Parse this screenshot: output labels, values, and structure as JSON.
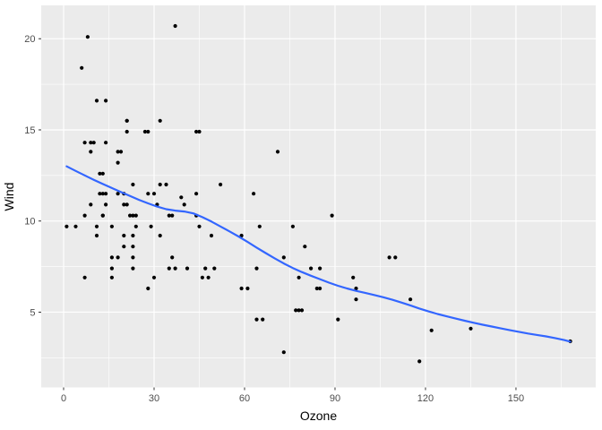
{
  "chart_data": {
    "type": "scatter",
    "title": "",
    "xlabel": "Ozone",
    "ylabel": "Wind",
    "legend": "none",
    "grid": "white major and minor gridlines on gray panel",
    "xlim": [
      -7.43,
      176.45
    ],
    "ylim": [
      0.87,
      21.83
    ],
    "x_ticks": [
      0,
      30,
      60,
      90,
      120,
      150
    ],
    "y_ticks": [
      5,
      10,
      15,
      20
    ],
    "x_minor_ticks": [
      15,
      45,
      75,
      105,
      135,
      165
    ],
    "y_minor_ticks": [
      2.5,
      7.5,
      12.5,
      17.5
    ],
    "colors": {
      "panel_background": "#EBEBEB",
      "gridline": "#FFFFFF",
      "point": "#000000",
      "smooth_line": "#3366FF",
      "tick_text": "#4d4d4d",
      "axis_title": "#000000",
      "tick_mark": "#333333",
      "page_background": "#FFFFFF"
    },
    "points": [
      [
        41,
        7.4
      ],
      [
        36,
        8.0
      ],
      [
        12,
        12.6
      ],
      [
        18,
        11.5
      ],
      [
        28,
        14.9
      ],
      [
        23,
        8.6
      ],
      [
        19,
        13.8
      ],
      [
        8,
        20.1
      ],
      [
        7,
        6.9
      ],
      [
        16,
        9.7
      ],
      [
        11,
        9.2
      ],
      [
        14,
        10.9
      ],
      [
        18,
        13.2
      ],
      [
        14,
        11.5
      ],
      [
        34,
        12.0
      ],
      [
        6,
        18.4
      ],
      [
        30,
        11.5
      ],
      [
        11,
        9.7
      ],
      [
        1,
        9.7
      ],
      [
        11,
        16.6
      ],
      [
        4,
        9.7
      ],
      [
        32,
        12.0
      ],
      [
        23,
        12.0
      ],
      [
        45,
        14.9
      ],
      [
        115,
        5.7
      ],
      [
        37,
        7.4
      ],
      [
        29,
        9.7
      ],
      [
        71,
        13.8
      ],
      [
        39,
        11.3
      ],
      [
        23,
        8.0
      ],
      [
        21,
        14.9
      ],
      [
        37,
        20.7
      ],
      [
        20,
        9.2
      ],
      [
        12,
        11.5
      ],
      [
        13,
        10.3
      ],
      [
        135,
        4.1
      ],
      [
        49,
        9.2
      ],
      [
        32,
        9.2
      ],
      [
        64,
        4.6
      ],
      [
        40,
        10.9
      ],
      [
        77,
        5.1
      ],
      [
        97,
        6.3
      ],
      [
        97,
        5.7
      ],
      [
        85,
        7.4
      ],
      [
        10,
        14.3
      ],
      [
        27,
        14.9
      ],
      [
        7,
        14.3
      ],
      [
        48,
        6.9
      ],
      [
        35,
        10.3
      ],
      [
        61,
        6.3
      ],
      [
        79,
        5.1
      ],
      [
        63,
        11.5
      ],
      [
        16,
        6.9
      ],
      [
        80,
        8.6
      ],
      [
        108,
        8.0
      ],
      [
        20,
        8.6
      ],
      [
        52,
        12.0
      ],
      [
        82,
        7.4
      ],
      [
        50,
        7.4
      ],
      [
        64,
        7.4
      ],
      [
        59,
        9.2
      ],
      [
        9,
        13.8
      ],
      [
        16,
        7.4
      ],
      [
        78,
        6.9
      ],
      [
        35,
        7.4
      ],
      [
        66,
        4.6
      ],
      [
        122,
        4.0
      ],
      [
        89,
        10.3
      ],
      [
        110,
        8.0
      ],
      [
        44,
        11.5
      ],
      [
        28,
        11.5
      ],
      [
        65,
        9.7
      ],
      [
        22,
        10.3
      ],
      [
        59,
        6.3
      ],
      [
        23,
        7.4
      ],
      [
        31,
        10.9
      ],
      [
        44,
        10.3
      ],
      [
        21,
        15.5
      ],
      [
        9,
        14.3
      ],
      [
        45,
        9.7
      ],
      [
        168,
        3.4
      ],
      [
        73,
        8.0
      ],
      [
        76,
        9.7
      ],
      [
        118,
        2.3
      ],
      [
        84,
        6.3
      ],
      [
        85,
        6.3
      ],
      [
        96,
        6.9
      ],
      [
        78,
        5.1
      ],
      [
        73,
        2.8
      ],
      [
        91,
        4.6
      ],
      [
        47,
        7.4
      ],
      [
        32,
        15.5
      ],
      [
        20,
        10.9
      ],
      [
        23,
        10.3
      ],
      [
        21,
        10.9
      ],
      [
        24,
        9.7
      ],
      [
        44,
        14.9
      ],
      [
        21,
        15.5
      ],
      [
        28,
        6.3
      ],
      [
        9,
        10.9
      ],
      [
        13,
        11.5
      ],
      [
        46,
        6.9
      ],
      [
        18,
        13.8
      ],
      [
        13,
        10.3
      ],
      [
        24,
        10.3
      ],
      [
        16,
        8.0
      ],
      [
        13,
        12.6
      ],
      [
        23,
        9.2
      ],
      [
        36,
        10.3
      ],
      [
        7,
        10.3
      ],
      [
        14,
        16.6
      ],
      [
        30,
        6.9
      ],
      [
        14,
        14.3
      ],
      [
        18,
        8.0
      ],
      [
        20,
        11.5
      ]
    ],
    "smooth_line": [
      [
        1,
        13.0
      ],
      [
        4,
        12.75
      ],
      [
        7,
        12.5
      ],
      [
        10,
        12.26
      ],
      [
        13,
        12.03
      ],
      [
        16,
        11.81
      ],
      [
        19,
        11.59
      ],
      [
        22,
        11.37
      ],
      [
        25,
        11.16
      ],
      [
        28,
        10.97
      ],
      [
        31,
        10.79
      ],
      [
        34,
        10.65
      ],
      [
        37,
        10.57
      ],
      [
        40,
        10.52
      ],
      [
        43,
        10.42
      ],
      [
        46,
        10.21
      ],
      [
        49,
        9.97
      ],
      [
        52,
        9.7
      ],
      [
        55,
        9.43
      ],
      [
        58,
        9.15
      ],
      [
        61,
        8.85
      ],
      [
        64,
        8.54
      ],
      [
        67,
        8.24
      ],
      [
        70,
        7.95
      ],
      [
        73,
        7.67
      ],
      [
        76,
        7.42
      ],
      [
        79,
        7.2
      ],
      [
        82,
        7.0
      ],
      [
        85,
        6.81
      ],
      [
        88,
        6.62
      ],
      [
        91,
        6.45
      ],
      [
        94,
        6.3
      ],
      [
        97,
        6.17
      ],
      [
        100,
        6.06
      ],
      [
        103,
        5.94
      ],
      [
        106,
        5.82
      ],
      [
        109,
        5.68
      ],
      [
        112,
        5.53
      ],
      [
        115,
        5.37
      ],
      [
        118,
        5.2
      ],
      [
        121,
        5.04
      ],
      [
        124,
        4.9
      ],
      [
        127,
        4.77
      ],
      [
        130,
        4.65
      ],
      [
        133,
        4.53
      ],
      [
        136,
        4.42
      ],
      [
        139,
        4.31
      ],
      [
        142,
        4.21
      ],
      [
        145,
        4.11
      ],
      [
        148,
        4.01
      ],
      [
        151,
        3.92
      ],
      [
        154,
        3.83
      ],
      [
        157,
        3.75
      ],
      [
        160,
        3.67
      ],
      [
        163,
        3.58
      ],
      [
        166,
        3.47
      ],
      [
        168,
        3.38
      ]
    ]
  }
}
